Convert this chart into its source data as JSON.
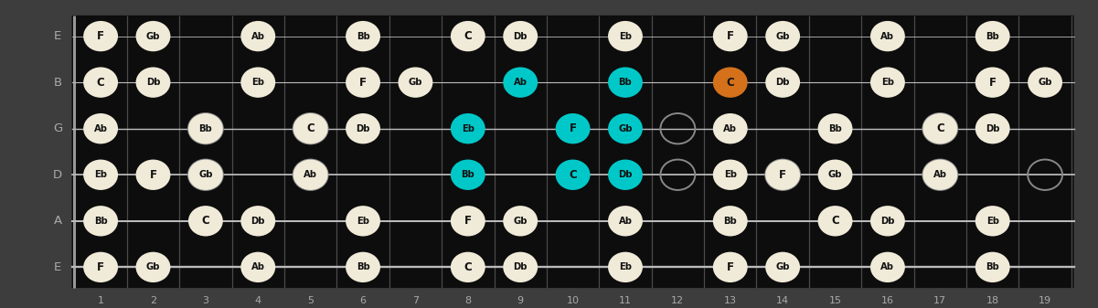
{
  "bg_color": "#3d3d3d",
  "fretboard_color": "#0d0d0d",
  "fret_color": "#4a4a4a",
  "nut_color": "#888888",
  "string_color": "#bbbbbb",
  "normal_note_fill": "#f0ead8",
  "normal_note_text": "#111111",
  "cyan_note_fill": "#00c8c8",
  "cyan_note_text": "#111111",
  "orange_note_fill": "#d4711a",
  "orange_note_text": "#111111",
  "open_circle_color": "#888888",
  "label_color": "#aaaaaa",
  "n_frets": 19,
  "strings": [
    "E",
    "B",
    "G",
    "D",
    "A",
    "E"
  ],
  "notes": [
    {
      "string": 0,
      "fret": 1,
      "label": "F",
      "color": "normal"
    },
    {
      "string": 0,
      "fret": 2,
      "label": "Gb",
      "color": "normal"
    },
    {
      "string": 0,
      "fret": 4,
      "label": "Ab",
      "color": "normal"
    },
    {
      "string": 0,
      "fret": 6,
      "label": "Bb",
      "color": "normal"
    },
    {
      "string": 0,
      "fret": 8,
      "label": "C",
      "color": "normal"
    },
    {
      "string": 0,
      "fret": 9,
      "label": "Db",
      "color": "normal"
    },
    {
      "string": 0,
      "fret": 11,
      "label": "Eb",
      "color": "normal"
    },
    {
      "string": 0,
      "fret": 13,
      "label": "F",
      "color": "normal"
    },
    {
      "string": 0,
      "fret": 14,
      "label": "Gb",
      "color": "normal"
    },
    {
      "string": 0,
      "fret": 16,
      "label": "Ab",
      "color": "normal"
    },
    {
      "string": 0,
      "fret": 18,
      "label": "Bb",
      "color": "normal"
    },
    {
      "string": 1,
      "fret": 1,
      "label": "C",
      "color": "normal"
    },
    {
      "string": 1,
      "fret": 2,
      "label": "Db",
      "color": "normal"
    },
    {
      "string": 1,
      "fret": 4,
      "label": "Eb",
      "color": "normal"
    },
    {
      "string": 1,
      "fret": 6,
      "label": "F",
      "color": "normal"
    },
    {
      "string": 1,
      "fret": 7,
      "label": "Gb",
      "color": "normal"
    },
    {
      "string": 1,
      "fret": 9,
      "label": "Ab",
      "color": "cyan"
    },
    {
      "string": 1,
      "fret": 11,
      "label": "Bb",
      "color": "cyan"
    },
    {
      "string": 1,
      "fret": 13,
      "label": "C",
      "color": "orange"
    },
    {
      "string": 1,
      "fret": 14,
      "label": "Db",
      "color": "normal"
    },
    {
      "string": 1,
      "fret": 16,
      "label": "Eb",
      "color": "normal"
    },
    {
      "string": 1,
      "fret": 18,
      "label": "F",
      "color": "normal"
    },
    {
      "string": 1,
      "fret": 19,
      "label": "Gb",
      "color": "normal"
    },
    {
      "string": 2,
      "fret": 1,
      "label": "Ab",
      "color": "normal"
    },
    {
      "string": 2,
      "fret": 3,
      "label": "Bb",
      "color": "normal"
    },
    {
      "string": 2,
      "fret": 5,
      "label": "C",
      "color": "normal"
    },
    {
      "string": 2,
      "fret": 6,
      "label": "Db",
      "color": "normal"
    },
    {
      "string": 2,
      "fret": 8,
      "label": "Eb",
      "color": "cyan"
    },
    {
      "string": 2,
      "fret": 10,
      "label": "F",
      "color": "cyan"
    },
    {
      "string": 2,
      "fret": 11,
      "label": "Gb",
      "color": "cyan"
    },
    {
      "string": 2,
      "fret": 13,
      "label": "Ab",
      "color": "normal"
    },
    {
      "string": 2,
      "fret": 15,
      "label": "Bb",
      "color": "normal"
    },
    {
      "string": 2,
      "fret": 17,
      "label": "C",
      "color": "normal"
    },
    {
      "string": 2,
      "fret": 18,
      "label": "Db",
      "color": "normal"
    },
    {
      "string": 3,
      "fret": 1,
      "label": "Eb",
      "color": "normal"
    },
    {
      "string": 3,
      "fret": 2,
      "label": "F",
      "color": "normal"
    },
    {
      "string": 3,
      "fret": 3,
      "label": "Gb",
      "color": "normal"
    },
    {
      "string": 3,
      "fret": 5,
      "label": "Ab",
      "color": "normal"
    },
    {
      "string": 3,
      "fret": 8,
      "label": "Bb",
      "color": "cyan"
    },
    {
      "string": 3,
      "fret": 10,
      "label": "C",
      "color": "cyan"
    },
    {
      "string": 3,
      "fret": 11,
      "label": "Db",
      "color": "cyan"
    },
    {
      "string": 3,
      "fret": 13,
      "label": "Eb",
      "color": "normal"
    },
    {
      "string": 3,
      "fret": 14,
      "label": "F",
      "color": "normal"
    },
    {
      "string": 3,
      "fret": 15,
      "label": "Gb",
      "color": "normal"
    },
    {
      "string": 3,
      "fret": 17,
      "label": "Ab",
      "color": "normal"
    },
    {
      "string": 4,
      "fret": 1,
      "label": "Bb",
      "color": "normal"
    },
    {
      "string": 4,
      "fret": 3,
      "label": "C",
      "color": "normal"
    },
    {
      "string": 4,
      "fret": 4,
      "label": "Db",
      "color": "normal"
    },
    {
      "string": 4,
      "fret": 6,
      "label": "Eb",
      "color": "normal"
    },
    {
      "string": 4,
      "fret": 8,
      "label": "F",
      "color": "normal"
    },
    {
      "string": 4,
      "fret": 9,
      "label": "Gb",
      "color": "normal"
    },
    {
      "string": 4,
      "fret": 11,
      "label": "Ab",
      "color": "normal"
    },
    {
      "string": 4,
      "fret": 13,
      "label": "Bb",
      "color": "normal"
    },
    {
      "string": 4,
      "fret": 15,
      "label": "C",
      "color": "normal"
    },
    {
      "string": 4,
      "fret": 16,
      "label": "Db",
      "color": "normal"
    },
    {
      "string": 4,
      "fret": 18,
      "label": "Eb",
      "color": "normal"
    },
    {
      "string": 5,
      "fret": 1,
      "label": "F",
      "color": "normal"
    },
    {
      "string": 5,
      "fret": 2,
      "label": "Gb",
      "color": "normal"
    },
    {
      "string": 5,
      "fret": 4,
      "label": "Ab",
      "color": "normal"
    },
    {
      "string": 5,
      "fret": 6,
      "label": "Bb",
      "color": "normal"
    },
    {
      "string": 5,
      "fret": 8,
      "label": "C",
      "color": "normal"
    },
    {
      "string": 5,
      "fret": 9,
      "label": "Db",
      "color": "normal"
    },
    {
      "string": 5,
      "fret": 11,
      "label": "Eb",
      "color": "normal"
    },
    {
      "string": 5,
      "fret": 13,
      "label": "F",
      "color": "normal"
    },
    {
      "string": 5,
      "fret": 14,
      "label": "Gb",
      "color": "normal"
    },
    {
      "string": 5,
      "fret": 16,
      "label": "Ab",
      "color": "normal"
    },
    {
      "string": 5,
      "fret": 18,
      "label": "Bb",
      "color": "normal"
    }
  ],
  "open_circles": [
    {
      "string": 2,
      "fret": 3
    },
    {
      "string": 3,
      "fret": 3
    },
    {
      "string": 2,
      "fret": 5
    },
    {
      "string": 3,
      "fret": 5
    },
    {
      "string": 2,
      "fret": 12
    },
    {
      "string": 3,
      "fret": 12
    },
    {
      "string": 3,
      "fret": 14
    },
    {
      "string": 2,
      "fret": 17
    },
    {
      "string": 3,
      "fret": 17
    },
    {
      "string": 3,
      "fret": 19
    }
  ]
}
